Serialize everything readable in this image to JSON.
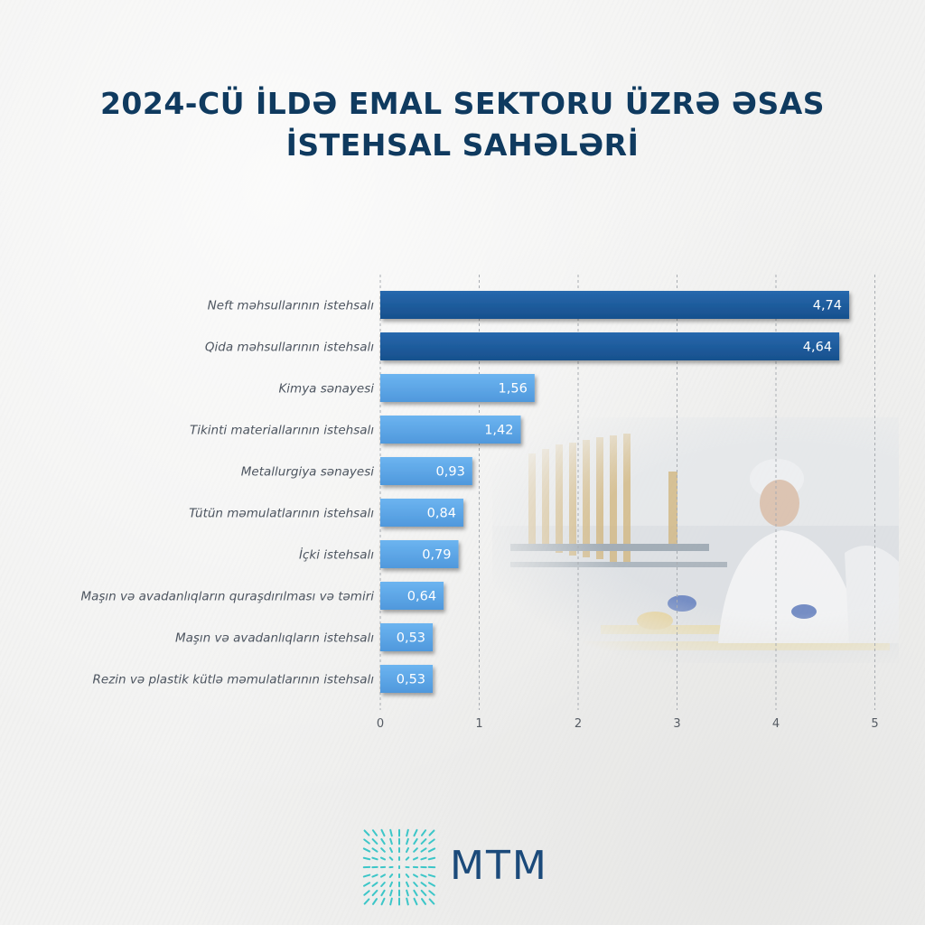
{
  "title": {
    "line1": "2024-CÜ İLDƏ EMAL SEKTORU ÜZRƏ ƏSAS",
    "line2": "İSTEHSAL SAHƏLƏRİ"
  },
  "colors": {
    "title": "#0f3a5f",
    "bar_dark": "#1e5a9c",
    "bar_light": "#5fa8e8",
    "logo_text": "#1b4a7a",
    "logo_mark": "#3cc6c8"
  },
  "chart_data": {
    "type": "bar",
    "orientation": "horizontal",
    "categories": [
      "Neft məhsullarının istehsalı",
      "Qida məhsullarının istehsalı",
      "Kimya sənayesi",
      "Tikinti materiallarının istehsalı",
      "Metallurgiya sənayesi",
      "Tütün məmulatlarının istehsalı",
      "İçki istehsalı",
      "Maşın və avadanlıqların quraşdırılması və təmiri",
      "Maşın və avadanlıqların istehsalı",
      "Rezin və plastik kütlə məmulatlarının istehsalı"
    ],
    "values": [
      4.74,
      4.64,
      1.56,
      1.42,
      0.93,
      0.84,
      0.79,
      0.64,
      0.53,
      0.53
    ],
    "value_labels": [
      "4,74",
      "4,64",
      "1,56",
      "1,42",
      "0,93",
      "0,84",
      "0,79",
      "0,64",
      "0,53",
      "0,53"
    ],
    "xlim": [
      0,
      5
    ],
    "xticks": [
      "0",
      "1",
      "2",
      "3",
      "4",
      "5"
    ],
    "grid": "vertical dashed"
  },
  "logo": {
    "text": "MTM",
    "icon": "sunburst-grid-icon"
  }
}
